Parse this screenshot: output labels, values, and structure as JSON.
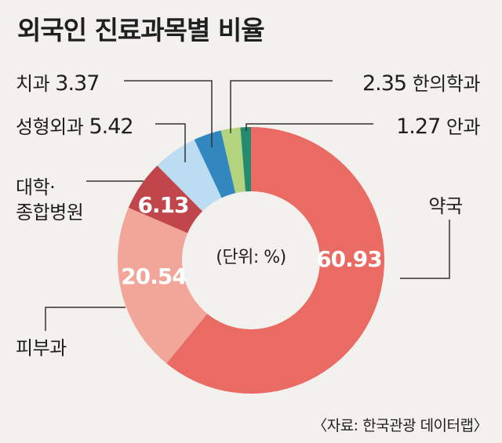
{
  "title": "외국인 진료과목별 비율",
  "unit_label": "(단위: %)",
  "source": "〈자료: 한국관광 데이터랩〉",
  "chart_data": {
    "type": "pie",
    "title": "외국인 진료과목별 비율",
    "unit": "%",
    "slices": [
      {
        "label": "약국",
        "value": 60.93,
        "value_text": "60.93",
        "color": "#ea6a64"
      },
      {
        "label": "피부과",
        "value": 20.54,
        "value_text": "20.54",
        "color": "#f2a599"
      },
      {
        "label": "대학·\n종합병원",
        "value": 6.13,
        "value_text": "6.13",
        "color": "#c0464b"
      },
      {
        "label": "성형외과",
        "value": 5.42,
        "value_text": "5.42",
        "color": "#bcdcf1"
      },
      {
        "label": "치과",
        "value": 3.37,
        "value_text": "3.37",
        "color": "#3287bf"
      },
      {
        "label": "한의학과",
        "value": 2.35,
        "value_text": "2.35",
        "color": "#b4d37e"
      },
      {
        "label": "안과",
        "value": 1.27,
        "value_text": "1.27",
        "color": "#238a6d"
      }
    ]
  }
}
